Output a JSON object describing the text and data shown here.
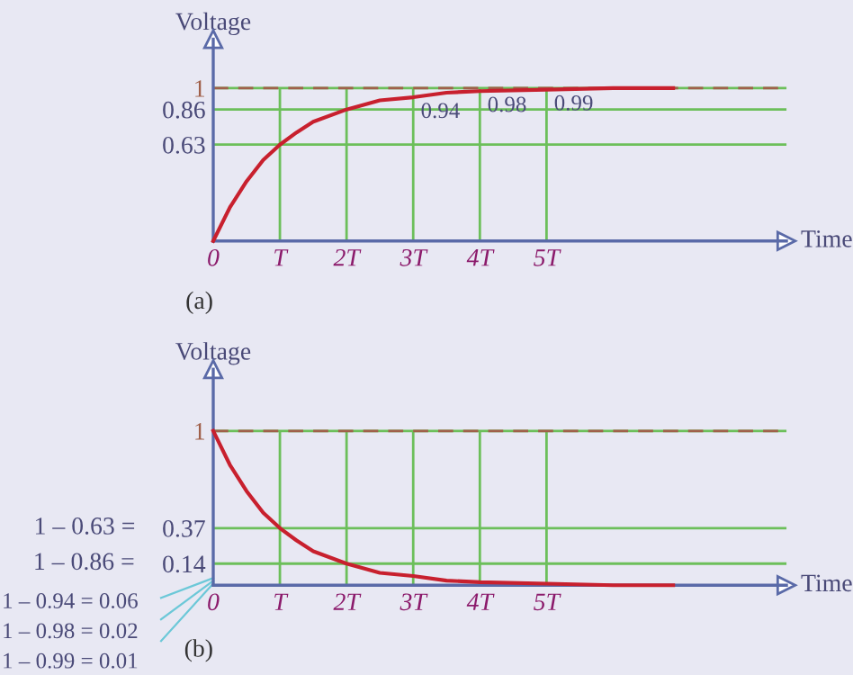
{
  "chart_data": [
    {
      "type": "line",
      "xlabel": "Time",
      "ylabel": "Voltage",
      "xlim": [
        0,
        8.6
      ],
      "ylim": [
        0,
        1.32
      ],
      "xticks": [
        0,
        {
          "value": 1,
          "label": "T"
        },
        {
          "value": 2,
          "label": "2T"
        },
        {
          "value": 3,
          "label": "3T"
        },
        {
          "value": 4,
          "label": "4T"
        },
        {
          "value": 5,
          "label": "5T"
        }
      ],
      "yticks": [
        0.63,
        0.86,
        1
      ],
      "x": [
        0,
        0.25,
        0.5,
        0.75,
        1,
        1.25,
        1.5,
        2,
        2.5,
        3,
        3.5,
        4,
        5,
        6,
        6.9
      ],
      "series": [
        {
          "color": "#c8202e",
          "values": [
            0,
            0.22,
            0.39,
            0.53,
            0.63,
            0.71,
            0.78,
            0.86,
            0.92,
            0.94,
            0.97,
            0.98,
            0.99,
            1.0,
            1.0
          ]
        }
      ],
      "ref_lines": [
        {
          "axis": "y",
          "value": 1,
          "color": "#a0604a",
          "line_style": "dashed"
        }
      ],
      "grid": true,
      "annotations": [
        {
          "text": "0.94",
          "x": 3,
          "y": 0.94
        },
        {
          "text": "0.98",
          "x": 4,
          "y": 0.98
        },
        {
          "text": "0.99",
          "x": 5,
          "y": 0.99
        },
        "(a)"
      ]
    },
    {
      "type": "line",
      "xlabel": "Time",
      "ylabel": "Voltage",
      "xlim": [
        0,
        8.6
      ],
      "ylim": [
        0,
        1.4
      ],
      "xticks": [
        0,
        {
          "value": 1,
          "label": "T"
        },
        {
          "value": 2,
          "label": "2T"
        },
        {
          "value": 3,
          "label": "3T"
        },
        {
          "value": 4,
          "label": "4T"
        },
        {
          "value": 5,
          "label": "5T"
        }
      ],
      "yticks": [
        0.14,
        0.37,
        1
      ],
      "x": [
        0,
        0.25,
        0.5,
        0.75,
        1,
        1.25,
        1.5,
        2,
        2.5,
        3,
        3.5,
        4,
        5,
        6,
        6.9
      ],
      "series": [
        {
          "color": "#c8202e",
          "values": [
            1,
            0.78,
            0.61,
            0.47,
            0.37,
            0.29,
            0.22,
            0.14,
            0.08,
            0.06,
            0.03,
            0.02,
            0.01,
            0,
            0
          ]
        }
      ],
      "ref_lines": [
        {
          "axis": "y",
          "value": 1,
          "color": "#a0604a",
          "line_style": "dashed"
        }
      ],
      "grid": true,
      "annotations": [
        "1 – 0.63 =",
        "1 – 0.86 =",
        "1 – 0.94 = 0.06",
        "1 – 0.98 = 0.02",
        "1 – 0.99 = 0.01",
        "(b)"
      ]
    }
  ]
}
